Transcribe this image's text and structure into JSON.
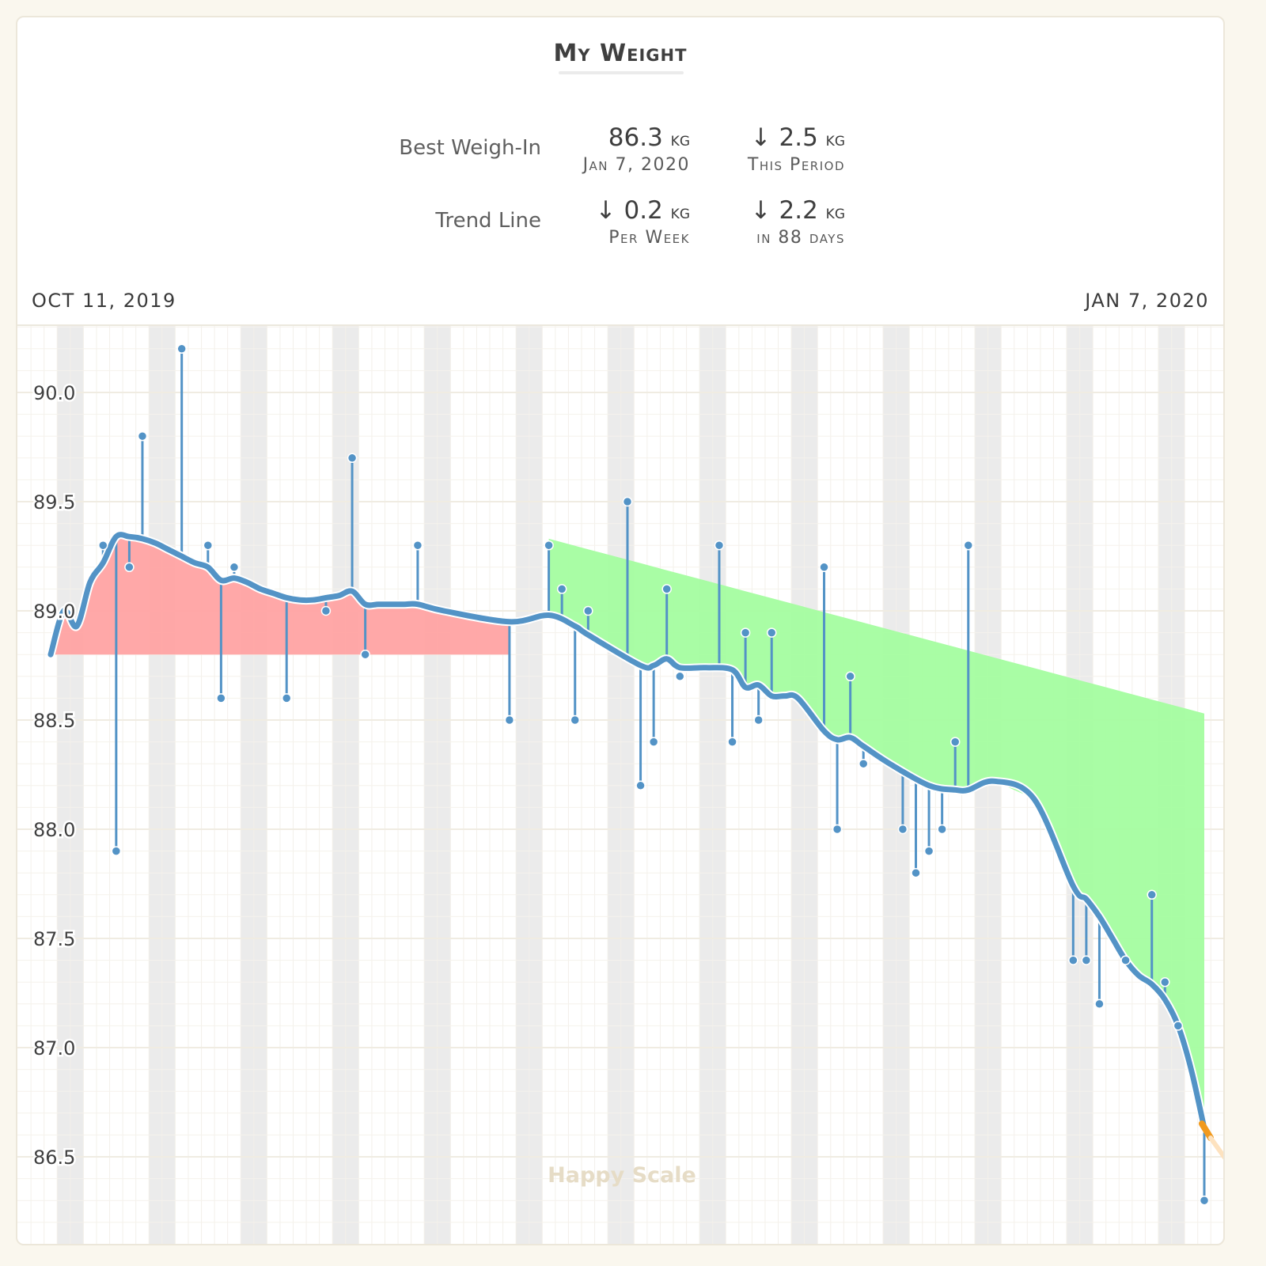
{
  "header": {
    "title": "My Weight"
  },
  "stats": {
    "best_weigh_in": {
      "label": "Best Weigh-In",
      "value": "86.3",
      "unit": "kg",
      "date": "Jan 7, 2020",
      "change_value": "↓ 2.5",
      "change_unit": "kg",
      "change_caption": "This Period"
    },
    "trend_line": {
      "label": "Trend Line",
      "rate_value": "↓ 0.2",
      "rate_unit": "kg",
      "rate_caption": "Per Week",
      "total_value": "↓ 2.2",
      "total_unit": "kg",
      "total_caption": "in 88 days"
    }
  },
  "range": {
    "start": "OCT 11, 2019",
    "end": "JAN 7, 2020"
  },
  "watermark": "Happy Scale",
  "colors": {
    "trend": "#5393c6",
    "weighin": "#5393c6",
    "above_fill": "#ffa3a3",
    "below_fill": "#a4fda0",
    "weekend_band": "#ebebeb",
    "grid": "#f0ece2",
    "goal_marker": "#f19a1e"
  },
  "chart_data": {
    "type": "line",
    "x_range": [
      "2019-10-11",
      "2020-01-07"
    ],
    "ylim": [
      86.2,
      90.4
    ],
    "yticks": [
      "86.5",
      "87.0",
      "87.5",
      "88.0",
      "88.5",
      "89.0",
      "89.5",
      "90.0"
    ],
    "grid": true,
    "weekend_bands": true,
    "baseline": 88.8,
    "series": [
      {
        "role": "weigh_ins",
        "x": [
          "2019-10-15",
          "2019-10-16",
          "2019-10-17",
          "2019-10-18",
          "2019-10-21",
          "2019-10-23",
          "2019-10-24",
          "2019-10-25",
          "2019-10-29",
          "2019-11-01",
          "2019-11-03",
          "2019-11-04",
          "2019-11-08",
          "2019-11-15",
          "2019-11-18",
          "2019-11-19",
          "2019-11-20",
          "2019-11-21",
          "2019-11-24",
          "2019-11-25",
          "2019-11-26",
          "2019-11-27",
          "2019-11-28",
          "2019-12-01",
          "2019-12-02",
          "2019-12-03",
          "2019-12-04",
          "2019-12-05",
          "2019-12-09",
          "2019-12-10",
          "2019-12-11",
          "2019-12-12",
          "2019-12-15",
          "2019-12-16",
          "2019-12-17",
          "2019-12-18",
          "2019-12-19",
          "2019-12-20",
          "2019-12-28",
          "2019-12-29",
          "2019-12-30",
          "2020-01-01",
          "2020-01-03",
          "2020-01-04",
          "2020-01-05",
          "2020-01-07"
        ],
        "y": [
          89.3,
          87.9,
          89.2,
          89.8,
          90.2,
          89.3,
          88.6,
          89.2,
          88.6,
          89.0,
          89.7,
          88.8,
          89.3,
          88.5,
          89.3,
          89.1,
          88.5,
          89.0,
          89.5,
          88.2,
          88.4,
          89.1,
          88.7,
          89.3,
          88.4,
          88.9,
          88.5,
          88.9,
          89.2,
          88.0,
          88.7,
          88.3,
          88.0,
          87.8,
          87.9,
          88.0,
          88.4,
          89.3,
          87.4,
          87.4,
          87.2,
          87.4,
          87.7,
          87.3,
          87.1,
          86.3
        ]
      },
      {
        "role": "trend",
        "x": [
          "2019-10-11",
          "2019-10-12",
          "2019-10-13",
          "2019-10-14",
          "2019-10-15",
          "2019-10-16",
          "2019-10-17",
          "2019-10-18",
          "2019-10-19",
          "2019-10-20",
          "2019-10-21",
          "2019-10-22",
          "2019-10-23",
          "2019-10-24",
          "2019-10-25",
          "2019-10-26",
          "2019-10-27",
          "2019-10-28",
          "2019-10-29",
          "2019-10-30",
          "2019-10-31",
          "2019-11-01",
          "2019-11-02",
          "2019-11-03",
          "2019-11-04",
          "2019-11-05",
          "2019-11-06",
          "2019-11-07",
          "2019-11-08",
          "2019-11-10",
          "2019-11-15",
          "2019-11-18",
          "2019-11-20",
          "2019-11-21",
          "2019-11-25",
          "2019-11-26",
          "2019-11-27",
          "2019-11-28",
          "2019-11-30",
          "2019-12-02",
          "2019-12-03",
          "2019-12-04",
          "2019-12-05",
          "2019-12-06",
          "2019-12-07",
          "2019-12-09",
          "2019-12-10",
          "2019-12-11",
          "2019-12-12",
          "2019-12-14",
          "2019-12-17",
          "2019-12-19",
          "2019-12-20",
          "2019-12-22",
          "2019-12-25",
          "2019-12-28",
          "2019-12-29",
          "2019-12-30",
          "2019-12-31",
          "2020-01-01",
          "2020-01-02",
          "2020-01-03",
          "2020-01-04",
          "2020-01-05",
          "2020-01-06",
          "2020-01-07"
        ],
        "y": [
          88.8,
          89.0,
          88.93,
          89.13,
          89.22,
          89.34,
          89.34,
          89.33,
          89.31,
          89.28,
          89.25,
          89.22,
          89.2,
          89.14,
          89.15,
          89.13,
          89.1,
          89.08,
          89.06,
          89.05,
          89.05,
          89.06,
          89.07,
          89.09,
          89.03,
          89.03,
          89.03,
          89.03,
          89.03,
          89.0,
          88.95,
          88.98,
          88.93,
          88.89,
          88.75,
          88.75,
          88.78,
          88.74,
          88.74,
          88.73,
          88.65,
          88.66,
          88.61,
          88.61,
          88.6,
          88.45,
          88.41,
          88.42,
          88.38,
          88.3,
          88.2,
          88.18,
          88.18,
          88.22,
          88.14,
          87.74,
          87.68,
          87.6,
          87.5,
          87.4,
          87.33,
          87.29,
          87.22,
          87.1,
          86.9,
          86.63
        ]
      }
    ]
  }
}
